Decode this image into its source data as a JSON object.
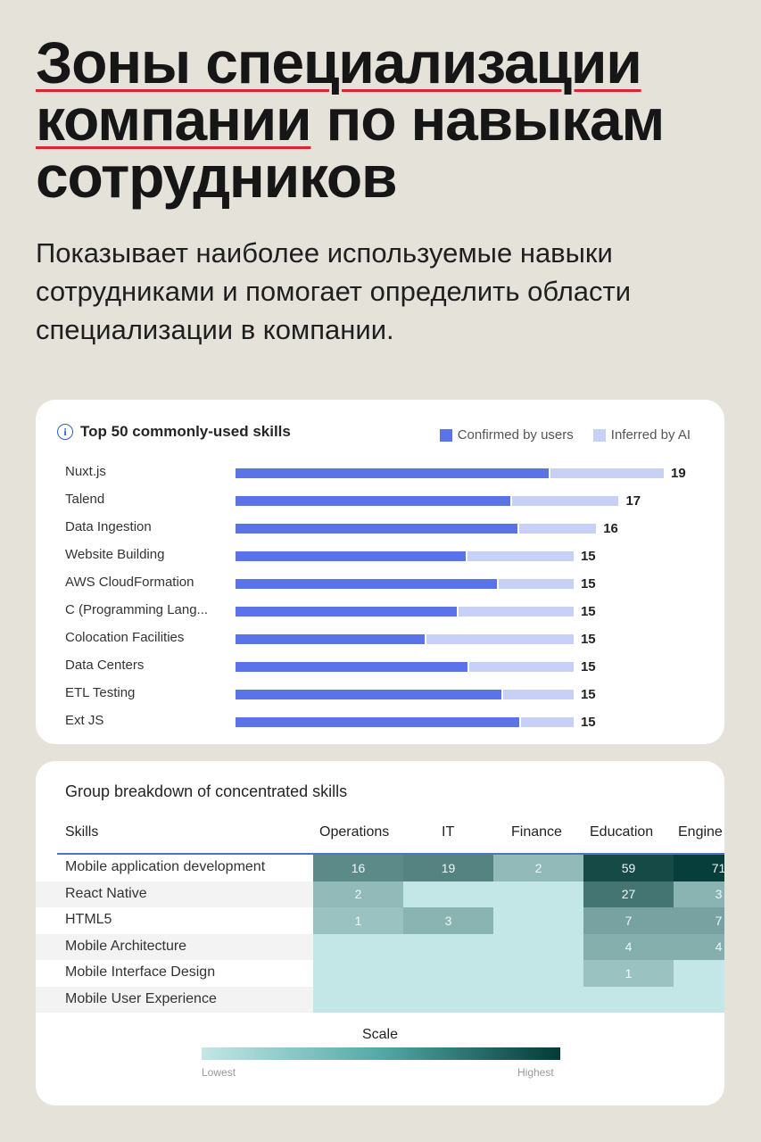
{
  "headline": {
    "line1": "Зоны специализации",
    "line2a": "компании",
    "line2b": " по навыкам",
    "line3": "сотрудников"
  },
  "subtitle": "Показывает наиболее используемые навыки сотрудниками и помогает определить области специализации в компании.",
  "skills_card": {
    "icon": "info-icon",
    "title": "Top 50 commonly-used skills",
    "legend": [
      {
        "label": "Confirmed by users",
        "color": "#5b73e8"
      },
      {
        "label": "Inferred by AI",
        "color": "#c7d0f7"
      }
    ]
  },
  "chart_data": {
    "type": "bar",
    "title": "Top 50 commonly-used skills",
    "orientation": "horizontal",
    "stacked": true,
    "categories": [
      "Nuxt.js",
      "Talend",
      "Data Ingestion",
      "Website Building",
      "AWS CloudFormation",
      "C (Programming Lang...",
      "Colocation Facilities",
      "Data Centers",
      "ETL Testing",
      "Ext JS"
    ],
    "totals": [
      19,
      17,
      16,
      15,
      15,
      15,
      15,
      15,
      15,
      15
    ],
    "series": [
      {
        "name": "Confirmed by users",
        "values": [
          13.9,
          12.2,
          12.5,
          10.2,
          11.6,
          9.8,
          8.4,
          10.3,
          11.8,
          12.6
        ]
      },
      {
        "name": "Inferred by AI",
        "values": [
          5.1,
          4.8,
          3.5,
          4.8,
          3.4,
          5.2,
          6.6,
          4.7,
          3.2,
          2.4
        ]
      }
    ],
    "xlim": [
      0,
      19
    ]
  },
  "heatmap_card": {
    "title": "Group breakdown of concentrated skills",
    "skills_header": "Skills",
    "columns": [
      "Operations",
      "IT",
      "Finance",
      "Education",
      "Engine"
    ],
    "rows": [
      {
        "label": "Mobile application development",
        "values": [
          16,
          19,
          2,
          59,
          71
        ]
      },
      {
        "label": "React Native",
        "values": [
          2,
          null,
          null,
          27,
          3
        ]
      },
      {
        "label": "HTML5",
        "values": [
          1,
          3,
          null,
          7,
          7
        ]
      },
      {
        "label": "Mobile Architecture",
        "values": [
          null,
          null,
          null,
          4,
          4
        ]
      },
      {
        "label": "Mobile Interface Design",
        "values": [
          null,
          null,
          null,
          1,
          null
        ]
      },
      {
        "label": "Mobile User Experience",
        "values": [
          null,
          null,
          null,
          null,
          null
        ]
      }
    ],
    "scale": {
      "title": "Scale",
      "low": "Lowest",
      "high": "Highest"
    },
    "colors": {
      "empty": "#c3e7e6",
      "max": "#033a37"
    }
  }
}
